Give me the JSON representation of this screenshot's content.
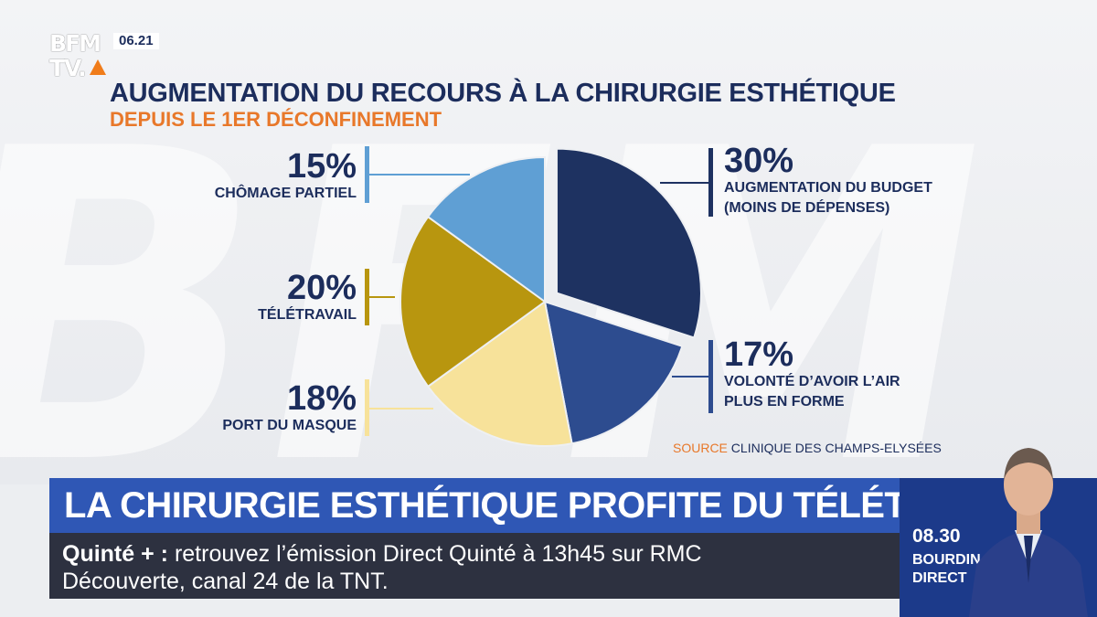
{
  "channel": {
    "logo_text_top": "BFM",
    "logo_text_bottom": "TV.",
    "clock": "06.21",
    "accent_color": "#f07c1a"
  },
  "chart_data": {
    "type": "pie",
    "title": "AUGMENTATION DU RECOURS À LA CHIRURGIE ESTHÉTIQUE",
    "subtitle": "DEPUIS LE 1ER DÉCONFINEMENT",
    "slices": [
      {
        "label": "AUGMENTATION DU BUDGET (MOINS DE DÉPENSES)",
        "value": 30,
        "display": "30%",
        "color": "#1e3261",
        "exploded": true
      },
      {
        "label": "VOLONTÉ D’AVOIR L’AIR PLUS EN FORME",
        "value": 17,
        "display": "17%",
        "color": "#2d4c8f",
        "exploded": false
      },
      {
        "label": "PORT DU MASQUE",
        "value": 18,
        "display": "18%",
        "color": "#f7e29a",
        "exploded": false
      },
      {
        "label": "TÉLÉTRAVAIL",
        "value": 20,
        "display": "20%",
        "color": "#b8960f",
        "exploded": false
      },
      {
        "label": "CHÔMAGE PARTIEL",
        "value": 15,
        "display": "15%",
        "color": "#5f9fd4",
        "exploded": false
      }
    ],
    "labels": {
      "budget_pct": "30%",
      "budget_line1": "AUGMENTATION DU BUDGET",
      "budget_line2": "(MOINS DE DÉPENSES)",
      "forme_pct": "17%",
      "forme_line1": "VOLONTÉ D’AVOIR L’AIR",
      "forme_line2": "PLUS EN FORME",
      "masque_pct": "18%",
      "masque_line1": "PORT DU MASQUE",
      "teletravail_pct": "20%",
      "teletravail_line1": "TÉLÉTRAVAIL",
      "chomage_pct": "15%",
      "chomage_line1": "CHÔMAGE PARTIEL"
    },
    "source_key": "SOURCE",
    "source_value": "CLINIQUE DES CHAMPS-ELYSÉES"
  },
  "headline": "LA CHIRURGIE ESTHÉTIQUE PROFITE DU TÉLÉTRAVAIL",
  "ticker": {
    "key": "Quinté + :",
    "line1": "retrouvez l’émission Direct Quinté à 13h45 sur RMC",
    "line2": "Découverte, canal 24 de la TNT."
  },
  "program": {
    "time": "08.30",
    "show_line1": "BOURDIN",
    "show_line2": "DIRECT"
  }
}
